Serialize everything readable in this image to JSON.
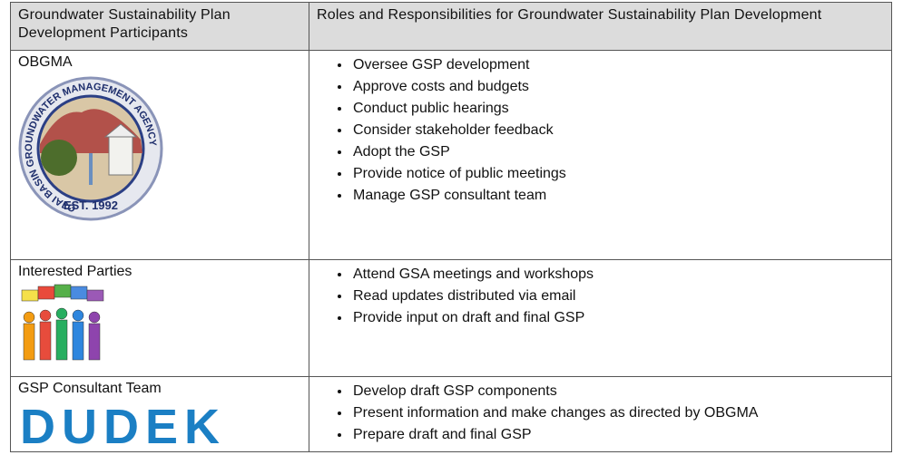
{
  "table": {
    "header": [
      "Groundwater Sustainability Plan Development Participants",
      "Roles and Responsibilities for Groundwater Sustainability Plan Development"
    ],
    "rows": [
      {
        "participant": "OBGMA",
        "logo": {
          "ring_text": "OJAI BASIN GROUNDWATER MANAGEMENT AGENCY",
          "est": "EST. 1992"
        },
        "roles": [
          "Oversee GSP development",
          "Approve costs and budgets",
          "Conduct public hearings",
          "Consider stakeholder feedback",
          "Adopt the GSP",
          "Provide notice of public meetings",
          "Manage GSP consultant team"
        ]
      },
      {
        "participant": "Interested Parties",
        "roles": [
          "Attend GSA meetings and workshops",
          "Read updates distributed via email",
          "Provide input on draft and final GSP"
        ]
      },
      {
        "participant": "GSP Consultant Team",
        "logo": {
          "text": "DUDEK"
        },
        "roles": [
          "Develop draft GSP components",
          "Present information and make changes as directed by OBGMA",
          "Prepare draft and final GSP"
        ]
      }
    ]
  }
}
